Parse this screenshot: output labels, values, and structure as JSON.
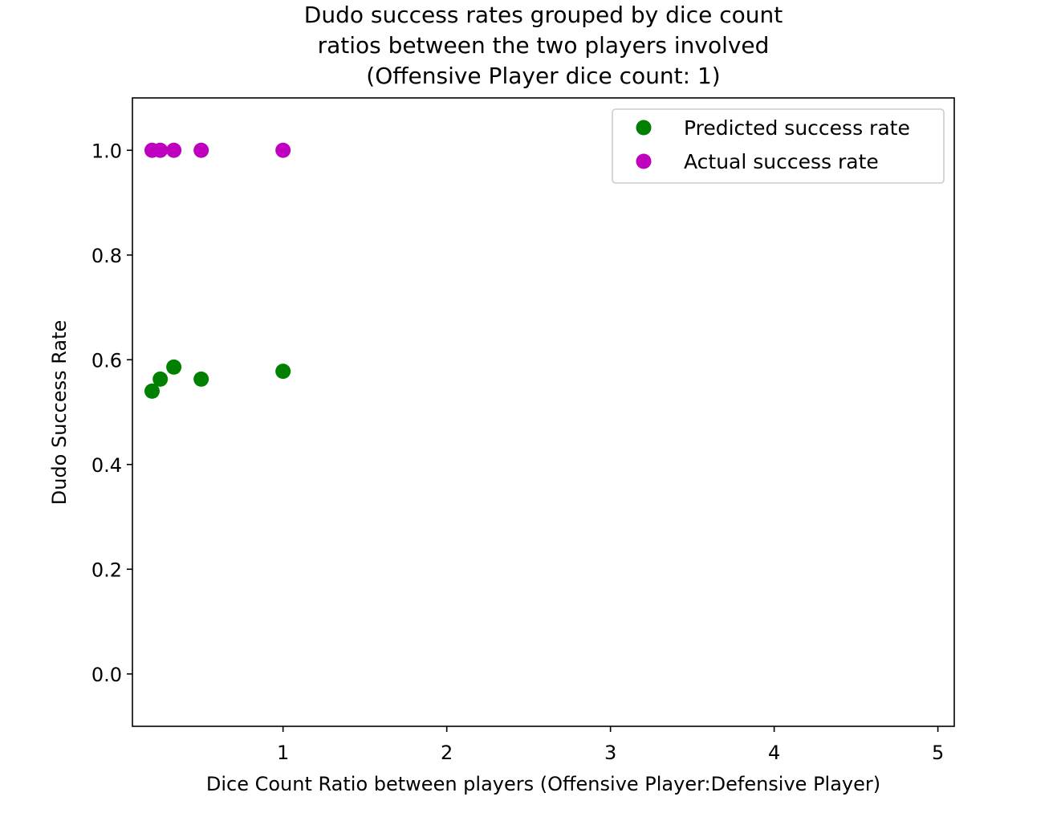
{
  "chart_data": {
    "type": "scatter",
    "title": [
      "Dudo success rates grouped by dice count",
      "ratios between the two players involved",
      "(Offensive Player dice count: 1)"
    ],
    "xlabel": "Dice Count Ratio between players (Offensive Player:Defensive Player)",
    "ylabel": "Dudo Success Rate",
    "xlim": [
      0.08,
      5.1
    ],
    "ylim": [
      -0.1,
      1.1
    ],
    "xticks": [
      1,
      2,
      3,
      4,
      5
    ],
    "xtick_labels": [
      "1",
      "2",
      "3",
      "4",
      "5"
    ],
    "yticks": [
      0.0,
      0.2,
      0.4,
      0.6,
      0.8,
      1.0
    ],
    "ytick_labels": [
      "0.0",
      "0.2",
      "0.4",
      "0.6",
      "0.8",
      "1.0"
    ],
    "grid": false,
    "legend_position": "top-right",
    "series": [
      {
        "name": "Predicted success rate",
        "color": "#008000",
        "x": [
          0.2,
          0.25,
          0.333,
          0.5,
          1.0
        ],
        "y": [
          0.54,
          0.563,
          0.586,
          0.563,
          0.578
        ]
      },
      {
        "name": "Actual success rate",
        "color": "#bf00bf",
        "x": [
          0.2,
          0.25,
          0.333,
          0.5,
          1.0
        ],
        "y": [
          1.0,
          1.0,
          1.0,
          1.0,
          1.0
        ]
      }
    ]
  }
}
